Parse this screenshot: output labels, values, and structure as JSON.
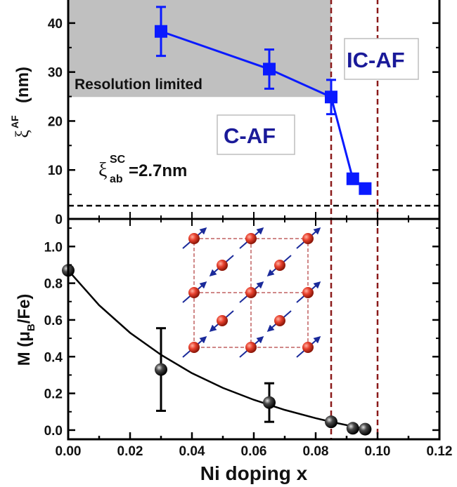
{
  "chart_data": [
    {
      "type": "scatter",
      "panel": "top",
      "ylabel": "ξ^AF (nm)",
      "ylabel_main": "ξ",
      "ylabel_sup": "AF",
      "ylabel_unit": "(nm)",
      "xlim": [
        0,
        0.12
      ],
      "ylim": [
        0,
        45
      ],
      "yticks": [
        0,
        10,
        20,
        30,
        40
      ],
      "series": [
        {
          "color": "#0a1aff",
          "marker": "square",
          "connected": true,
          "points": [
            {
              "x": 0.03,
              "y": 38.3,
              "err": 5.0
            },
            {
              "x": 0.065,
              "y": 30.6,
              "err": 4.0
            },
            {
              "x": 0.085,
              "y": 24.9,
              "err": 3.5
            },
            {
              "x": 0.092,
              "y": 8.2,
              "err": 1.0
            },
            {
              "x": 0.096,
              "y": 6.2,
              "err": 0.8
            }
          ]
        }
      ],
      "shaded_region": {
        "x": [
          0,
          0.085
        ],
        "y": [
          24.9,
          45
        ],
        "color": "#c0c0c0"
      },
      "annotations": {
        "resolution": "Resolution limited",
        "coherence_main": "ξ",
        "coherence_sup": "SC",
        "coherence_sub": "ab",
        "coherence_value": "=2.7nm",
        "c_af": "C-AF",
        "ic_af": "IC-AF"
      },
      "hline": {
        "y": 2.7,
        "style": "dashed",
        "color": "#000000"
      },
      "vlines": [
        {
          "x": 0.085,
          "style": "dashed",
          "color": "#8b1a1a"
        },
        {
          "x": 0.1,
          "style": "dashed",
          "color": "#8b1a1a"
        }
      ]
    },
    {
      "type": "scatter",
      "panel": "bottom",
      "ylabel": "M (μB/Fe)",
      "ylabel_pre": "M (μ",
      "ylabel_sub": "B",
      "ylabel_post": "/Fe)",
      "xlabel": "Ni doping x",
      "xlim": [
        0,
        0.12
      ],
      "ylim": [
        -0.05,
        1.15
      ],
      "xticks": [
        "0.00",
        "0.02",
        "0.04",
        "0.06",
        "0.08",
        "0.10",
        "0.12"
      ],
      "yticks": [
        "0.0",
        "0.2",
        "0.4",
        "0.6",
        "0.8",
        "1.0"
      ],
      "series": [
        {
          "color": "#111111",
          "marker": "sphere",
          "points": [
            {
              "x": 0.0,
              "y": 0.87,
              "err": 0
            },
            {
              "x": 0.03,
              "y": 0.33,
              "err": 0.225
            },
            {
              "x": 0.065,
              "y": 0.15,
              "err": 0.105
            },
            {
              "x": 0.085,
              "y": 0.045,
              "err": 0
            },
            {
              "x": 0.092,
              "y": 0.01,
              "err": 0
            },
            {
              "x": 0.096,
              "y": 0.005,
              "err": 0
            }
          ]
        }
      ],
      "fit_curve": {
        "points": [
          [
            0,
            0.87
          ],
          [
            0.01,
            0.68
          ],
          [
            0.02,
            0.53
          ],
          [
            0.03,
            0.41
          ],
          [
            0.04,
            0.31
          ],
          [
            0.05,
            0.23
          ],
          [
            0.06,
            0.165
          ],
          [
            0.07,
            0.11
          ],
          [
            0.08,
            0.065
          ],
          [
            0.085,
            0.045
          ],
          [
            0.092,
            0.02
          ],
          [
            0.096,
            0.005
          ]
        ],
        "color": "#000000"
      },
      "vlines": [
        {
          "x": 0.085,
          "style": "dashed",
          "color": "#8b1a1a"
        },
        {
          "x": 0.1,
          "style": "dashed",
          "color": "#8b1a1a"
        }
      ],
      "inset": "spin-lattice-diagram"
    }
  ]
}
